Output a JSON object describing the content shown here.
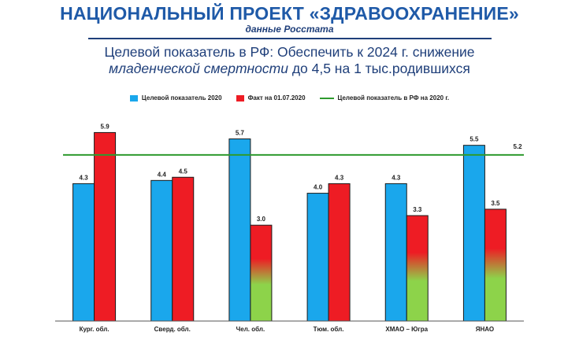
{
  "header": {
    "title": "НАЦИОНАЛЬНЫЙ ПРОЕКТ «ЗДРАВООХРАНЕНИЕ»",
    "subtitle": "данные Росстата",
    "headline_part1": "Целевой показатель в РФ: Обеспечить к 2024 г. снижение",
    "headline_em": "младенческой смертности",
    "headline_part2": " до 4,5 на 1 тыс.родившихся"
  },
  "colors": {
    "target": "#1aa7ec",
    "fact": "#ee1c24",
    "fact_low": "#8dd34a",
    "rf_line": "#2e9a2e"
  },
  "chart_data": {
    "type": "bar",
    "categories": [
      "Кург. обл.",
      "Сверд. обл.",
      "Чел. обл.",
      "Тюм. обл.",
      "ХМАО – Югра",
      "ЯНАО"
    ],
    "series": [
      {
        "name": "Целевой показатель 2020",
        "values": [
          4.3,
          4.4,
          5.7,
          4.0,
          4.3,
          5.5
        ],
        "labels": [
          "4.3",
          "4.4",
          "5.7",
          "4.0",
          "4.3",
          "5.5"
        ]
      },
      {
        "name": "Факт на 01.07.2020",
        "values": [
          5.9,
          4.5,
          3.0,
          4.3,
          3.3,
          3.5
        ],
        "labels": [
          "5.9",
          "4.5",
          "3.0",
          "4.3",
          "3.3",
          "3.5"
        ]
      }
    ],
    "reference_line": {
      "name": "Целевой показатель в РФ на 2020 г.",
      "value": 5.2,
      "label": "5.2"
    },
    "ylim": [
      0,
      6.6
    ],
    "grid": false,
    "legend_position": "top"
  }
}
